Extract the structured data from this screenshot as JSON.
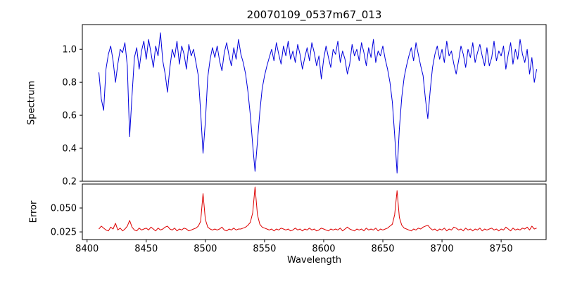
{
  "chart_data": {
    "type": "line",
    "title": "20070109_0537m67_013",
    "xlabel": "Wavelength",
    "x_start": 8410,
    "x_step": 2,
    "xlim": [
      8396,
      8788
    ],
    "xticks": [
      8400,
      8450,
      8500,
      8550,
      8600,
      8650,
      8700,
      8750
    ],
    "grid": false,
    "legend": "none",
    "panels": [
      {
        "name": "spectrum",
        "ylabel": "Spectrum",
        "color": "#0000dd",
        "ylim": [
          0.2,
          1.15
        ],
        "yticks": [
          0.2,
          0.4,
          0.6,
          0.8,
          1.0
        ],
        "ytick_labels": [
          "0.2",
          "0.4",
          "0.6",
          "0.8",
          "1.0"
        ]
      },
      {
        "name": "error",
        "ylabel": "Error",
        "color": "#dd0000",
        "ylim": [
          0.017,
          0.075
        ],
        "yticks": [
          0.025,
          0.05
        ],
        "ytick_labels": [
          "0.025",
          "0.050"
        ]
      }
    ],
    "absorption_features_wavelengths": [
      8413,
      8424,
      8436,
      8468,
      8498,
      8514,
      8542,
      8598,
      8621,
      8662,
      8688
    ],
    "series": [
      {
        "name": "spectrum",
        "values": [
          0.86,
          0.7,
          0.63,
          0.88,
          0.97,
          1.02,
          0.93,
          0.8,
          0.91,
          1.0,
          0.98,
          1.04,
          0.9,
          0.47,
          0.72,
          0.95,
          1.01,
          0.88,
          0.99,
          1.05,
          0.94,
          1.06,
          0.98,
          0.89,
          1.02,
          0.96,
          1.1,
          0.93,
          0.85,
          0.74,
          0.89,
          1.0,
          0.95,
          1.05,
          0.91,
          1.02,
          0.97,
          0.88,
          1.03,
          0.96,
          1.0,
          0.92,
          0.84,
          0.62,
          0.37,
          0.56,
          0.83,
          0.94,
          1.01,
          0.95,
          1.02,
          0.93,
          0.87,
          0.98,
          1.04,
          0.96,
          0.9,
          1.01,
          0.94,
          1.06,
          0.97,
          0.92,
          0.85,
          0.74,
          0.6,
          0.42,
          0.26,
          0.44,
          0.62,
          0.76,
          0.84,
          0.9,
          0.95,
          1.0,
          0.93,
          1.04,
          0.97,
          0.91,
          1.02,
          0.96,
          1.05,
          0.94,
          0.99,
          0.92,
          1.03,
          0.97,
          0.88,
          0.95,
          1.01,
          0.93,
          1.04,
          0.98,
          0.9,
          0.96,
          0.82,
          0.94,
          1.02,
          0.95,
          0.89,
          1.0,
          0.97,
          1.05,
          0.92,
          0.99,
          0.94,
          0.85,
          0.91,
          1.03,
          0.96,
          1.0,
          0.93,
          1.04,
          0.98,
          0.9,
          1.01,
          0.95,
          1.06,
          0.92,
          0.99,
          0.96,
          1.02,
          0.94,
          0.88,
          0.8,
          0.68,
          0.48,
          0.25,
          0.52,
          0.71,
          0.83,
          0.9,
          0.96,
          1.01,
          0.93,
          1.04,
          0.97,
          0.9,
          0.84,
          0.7,
          0.58,
          0.75,
          0.89,
          0.97,
          1.02,
          0.94,
          1.0,
          0.92,
          1.05,
          0.96,
          0.99,
          0.91,
          0.85,
          0.93,
          1.02,
          0.97,
          0.89,
          1.0,
          0.95,
          1.04,
          0.92,
          0.98,
          1.03,
          0.96,
          0.9,
          1.01,
          0.9,
          0.95,
          1.05,
          0.93,
          0.99,
          0.96,
          1.02,
          0.88,
          0.97,
          1.04,
          0.91,
          1.0,
          0.94,
          1.06,
          0.97,
          0.92,
          1.0,
          0.85,
          0.95,
          0.8,
          0.88
        ]
      },
      {
        "name": "error",
        "values": [
          0.028,
          0.031,
          0.029,
          0.027,
          0.026,
          0.03,
          0.028,
          0.034,
          0.027,
          0.029,
          0.026,
          0.028,
          0.031,
          0.037,
          0.03,
          0.027,
          0.026,
          0.029,
          0.027,
          0.028,
          0.029,
          0.027,
          0.03,
          0.028,
          0.026,
          0.029,
          0.027,
          0.028,
          0.03,
          0.031,
          0.028,
          0.027,
          0.029,
          0.026,
          0.028,
          0.027,
          0.029,
          0.028,
          0.026,
          0.027,
          0.028,
          0.029,
          0.031,
          0.036,
          0.065,
          0.038,
          0.03,
          0.028,
          0.027,
          0.028,
          0.027,
          0.028,
          0.03,
          0.027,
          0.026,
          0.028,
          0.027,
          0.029,
          0.027,
          0.028,
          0.028,
          0.029,
          0.03,
          0.032,
          0.035,
          0.045,
          0.072,
          0.043,
          0.033,
          0.03,
          0.029,
          0.028,
          0.027,
          0.028,
          0.026,
          0.028,
          0.027,
          0.029,
          0.028,
          0.027,
          0.028,
          0.026,
          0.027,
          0.029,
          0.027,
          0.028,
          0.026,
          0.028,
          0.027,
          0.029,
          0.027,
          0.028,
          0.026,
          0.027,
          0.029,
          0.028,
          0.027,
          0.026,
          0.028,
          0.027,
          0.028,
          0.027,
          0.029,
          0.026,
          0.028,
          0.03,
          0.028,
          0.027,
          0.026,
          0.028,
          0.027,
          0.028,
          0.026,
          0.029,
          0.027,
          0.028,
          0.027,
          0.029,
          0.026,
          0.028,
          0.027,
          0.028,
          0.029,
          0.031,
          0.033,
          0.043,
          0.068,
          0.04,
          0.032,
          0.029,
          0.028,
          0.027,
          0.026,
          0.028,
          0.027,
          0.029,
          0.028,
          0.03,
          0.031,
          0.032,
          0.029,
          0.027,
          0.028,
          0.026,
          0.028,
          0.027,
          0.029,
          0.026,
          0.028,
          0.027,
          0.03,
          0.029,
          0.027,
          0.028,
          0.026,
          0.029,
          0.027,
          0.028,
          0.026,
          0.028,
          0.027,
          0.029,
          0.026,
          0.028,
          0.027,
          0.028,
          0.029,
          0.027,
          0.028,
          0.026,
          0.028,
          0.027,
          0.03,
          0.028,
          0.026,
          0.029,
          0.027,
          0.028,
          0.027,
          0.029,
          0.028,
          0.03,
          0.027,
          0.031,
          0.028,
          0.029
        ]
      }
    ]
  }
}
